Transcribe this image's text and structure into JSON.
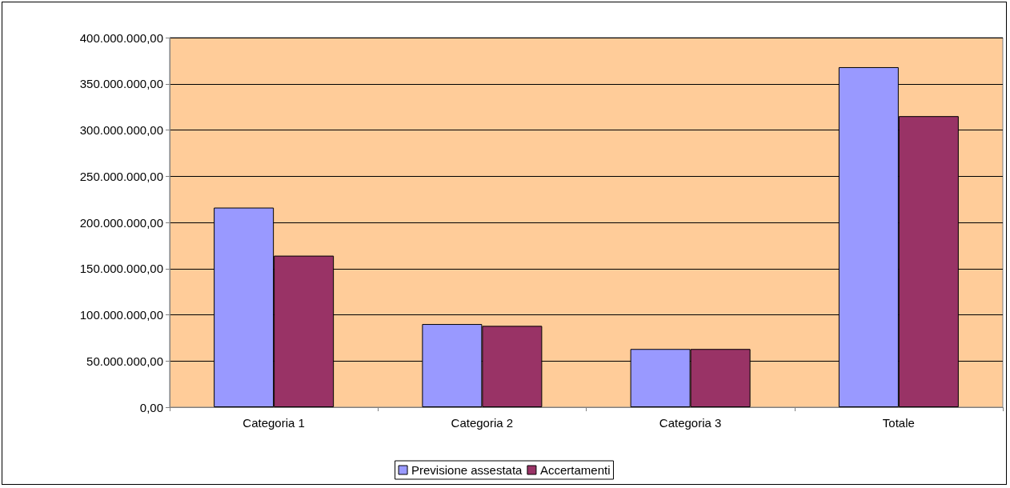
{
  "chart_data": {
    "type": "bar",
    "categories": [
      "Categoria 1",
      "Categoria 2",
      "Categoria 3",
      "Totale"
    ],
    "series": [
      {
        "name": "Previsione assestata",
        "color": "#9999ff",
        "values": [
          216000000,
          90000000,
          63000000,
          368000000
        ]
      },
      {
        "name": "Accertamenti",
        "color": "#993366",
        "values": [
          164000000,
          88000000,
          63000000,
          315000000
        ]
      }
    ],
    "ylim": [
      0,
      400000000
    ],
    "yticks": [
      {
        "value": 0,
        "label": "0,00"
      },
      {
        "value": 50000000,
        "label": "50.000.000,00"
      },
      {
        "value": 100000000,
        "label": "100.000.000,00"
      },
      {
        "value": 150000000,
        "label": "150.000.000,00"
      },
      {
        "value": 200000000,
        "label": "200.000.000,00"
      },
      {
        "value": 250000000,
        "label": "250.000.000,00"
      },
      {
        "value": 300000000,
        "label": "300.000.000,00"
      },
      {
        "value": 350000000,
        "label": "350.000.000,00"
      },
      {
        "value": 400000000,
        "label": "400.000.000,00"
      }
    ],
    "grid": "y",
    "legend": "bottom"
  }
}
